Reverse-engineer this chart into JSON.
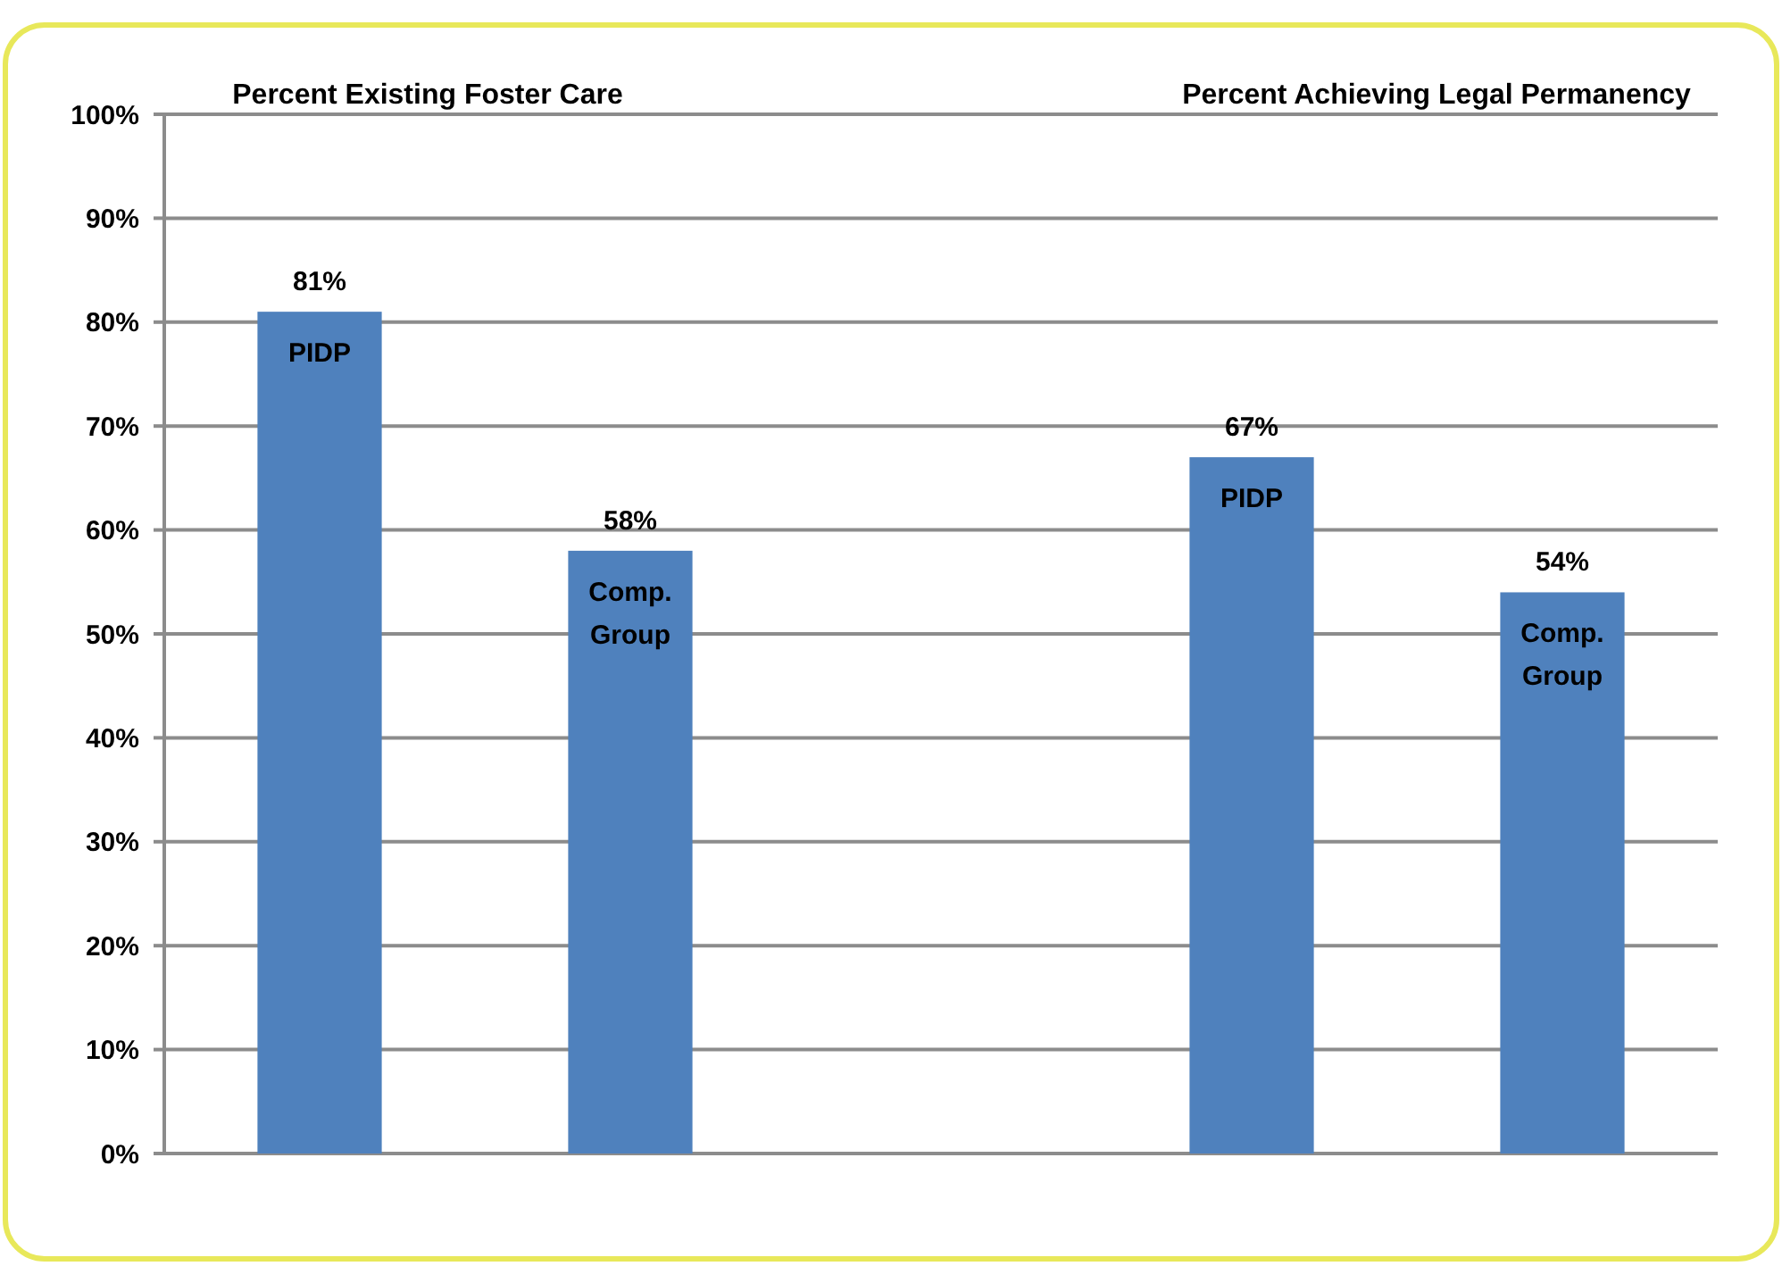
{
  "chart_data": {
    "type": "bar",
    "categories": [
      "PIDP",
      "Comp. Group",
      null,
      "PIDP",
      "Comp. Group"
    ],
    "values": [
      81,
      58,
      null,
      67,
      54
    ],
    "color": "#4f81bd",
    "ylim": [
      0,
      100
    ],
    "yticks": [
      {
        "value": 0,
        "label": "0%"
      },
      {
        "value": 10,
        "label": "10%"
      },
      {
        "value": 20,
        "label": "20%"
      },
      {
        "value": 30,
        "label": "30%"
      },
      {
        "value": 40,
        "label": "40%"
      },
      {
        "value": 50,
        "label": "50%"
      },
      {
        "value": 60,
        "label": "60%"
      },
      {
        "value": 70,
        "label": "70%"
      },
      {
        "value": 80,
        "label": "80%"
      },
      {
        "value": 90,
        "label": "90%"
      },
      {
        "value": 100,
        "label": "100%"
      }
    ],
    "value_labels": [
      "81%",
      "58%",
      null,
      "67%",
      "54%"
    ],
    "grid": "y",
    "annotations": [
      "Percent Existing Foster Care",
      "Percent Achieving Legal Permanency"
    ]
  }
}
